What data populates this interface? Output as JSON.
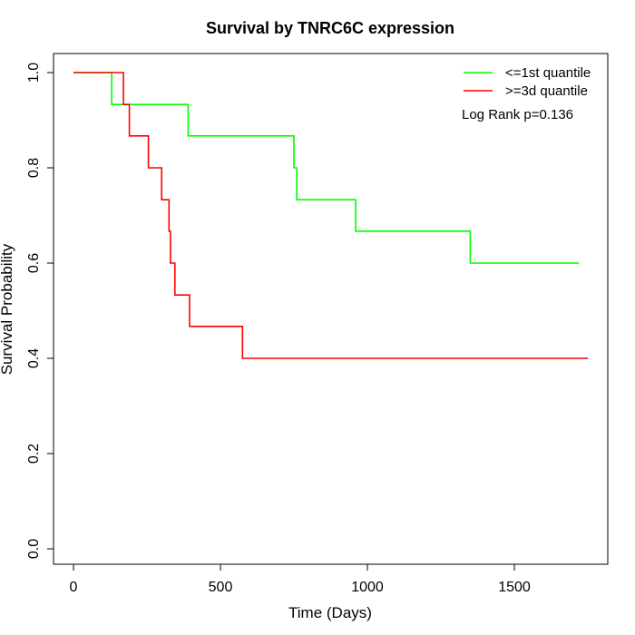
{
  "chart_data": {
    "type": "line",
    "title": "Survival by TNRC6C expression",
    "xlabel": "Time (Days)",
    "ylabel": "Survival Probability",
    "xlim": [
      0,
      1800
    ],
    "ylim": [
      0,
      1.0
    ],
    "x_ticks": [
      0,
      500,
      1000,
      1500
    ],
    "x_tick_labels": [
      "0",
      "500",
      "1000",
      "1500"
    ],
    "y_ticks": [
      0.0,
      0.2,
      0.4,
      0.6,
      0.8,
      1.0
    ],
    "y_tick_labels": [
      "0.0",
      "0.2",
      "0.4",
      "0.6",
      "0.8",
      "1.0"
    ],
    "grid": false,
    "legend_position": "top-right",
    "annotation": "Log Rank p=0.136",
    "series": [
      {
        "name": "<=1st quantile",
        "color": "#00ff00",
        "step": true,
        "x": [
          0,
          130,
          390,
          750,
          760,
          960,
          1350,
          1720
        ],
        "y": [
          1.0,
          0.933,
          0.867,
          0.8,
          0.733,
          0.667,
          0.6,
          0.6
        ]
      },
      {
        "name": ">=3d quantile",
        "color": "#ff0000",
        "step": true,
        "x": [
          0,
          170,
          190,
          255,
          300,
          325,
          330,
          345,
          395,
          575,
          1750
        ],
        "y": [
          1.0,
          0.933,
          0.867,
          0.8,
          0.733,
          0.667,
          0.6,
          0.533,
          0.467,
          0.4,
          0.4
        ]
      }
    ]
  }
}
